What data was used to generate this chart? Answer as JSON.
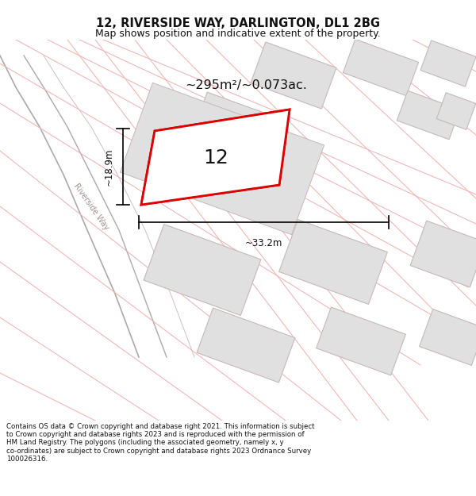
{
  "title_line1": "12, RIVERSIDE WAY, DARLINGTON, DL1 2BG",
  "title_line2": "Map shows position and indicative extent of the property.",
  "footer_text": "Contains OS data © Crown copyright and database right 2021. This information is subject\nto Crown copyright and database rights 2023 and is reproduced with the permission of\nHM Land Registry. The polygons (including the associated geometry, namely x, y\nco-ordinates) are subject to Crown copyright and database rights 2023 Ordnance Survey\n100026316.",
  "area_label": "~295m²/~0.073ac.",
  "number_label": "12",
  "dim_width_label": "~33.2m",
  "dim_height_label": "~18.9m",
  "street_label": "Riverside Way",
  "bg_color": "#ffffff",
  "plot_edge_color": "#dd0000",
  "plot_fill": "#ffffff",
  "road_line_color": "#b0a8a8",
  "grid_line_color": "#f0b8b8",
  "building_fill": "#e0e0e0",
  "building_edge": "#c8b8b8",
  "map_bg": "#ffffff"
}
